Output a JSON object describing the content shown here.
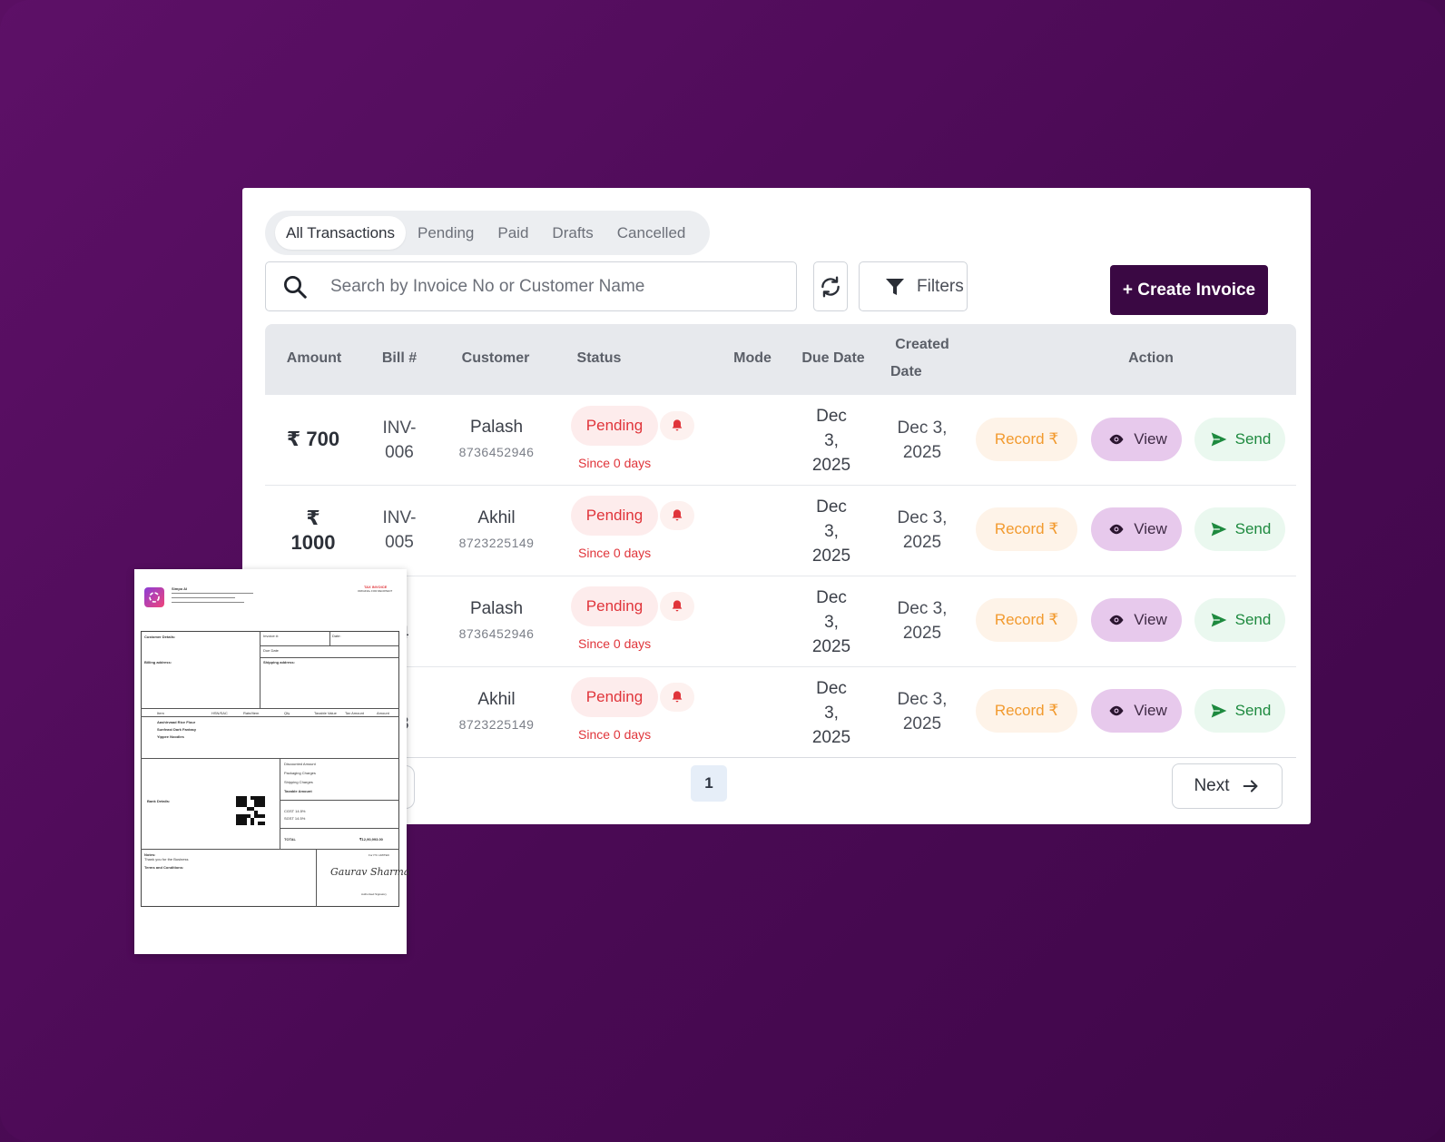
{
  "tabs": [
    {
      "label": "All Transactions",
      "active": true
    },
    {
      "label": "Pending",
      "active": false
    },
    {
      "label": "Paid",
      "active": false
    },
    {
      "label": "Drafts",
      "active": false
    },
    {
      "label": "Cancelled",
      "active": false
    }
  ],
  "search": {
    "placeholder": "Search by Invoice No or Customer Name",
    "icon": "search-icon"
  },
  "toolbar": {
    "refresh_icon": "refresh-icon",
    "filters_label": "Filters",
    "create_label": "+ Create Invoice"
  },
  "table": {
    "headers": {
      "amount": "Amount",
      "bill": "Bill #",
      "customer": "Customer",
      "status": "Status",
      "mode": "Mode",
      "due_date": "Due Date",
      "created_line1": "Created",
      "created_line2": "Date",
      "action": "Action"
    },
    "rows": [
      {
        "amount": "₹ 700",
        "bill_l1": "INV-",
        "bill_l2": "006",
        "customer": "Palash",
        "phone": "8736452946",
        "status": "Pending",
        "since": "Since 0 days",
        "mode": "",
        "due_l1": "Dec",
        "due_l2": "3,",
        "due_l3": "2025",
        "created_l1": "Dec 3,",
        "created_l2": "2025",
        "record": "Record ₹",
        "view": "View",
        "send": "Send"
      },
      {
        "amount_l1": "₹",
        "amount_l2": "1000",
        "bill_l1": "INV-",
        "bill_l2": "005",
        "customer": "Akhil",
        "phone": "8723225149",
        "status": "Pending",
        "since": "Since 0 days",
        "mode": "",
        "due_l1": "Dec",
        "due_l2": "3,",
        "due_l3": "2025",
        "created_l1": "Dec 3,",
        "created_l2": "2025",
        "record": "Record ₹",
        "view": "View",
        "send": "Send"
      },
      {
        "bill_l1": "/-",
        "bill_l2": "04",
        "customer": "Palash",
        "phone": "8736452946",
        "status": "Pending",
        "since": "Since 0 days",
        "mode": "",
        "due_l1": "Dec",
        "due_l2": "3,",
        "due_l3": "2025",
        "created_l1": "Dec 3,",
        "created_l2": "2025",
        "record": "Record ₹",
        "view": "View",
        "send": "Send"
      },
      {
        "bill_l1": "/-",
        "bill_l2": "03",
        "customer": "Akhil",
        "phone": "8723225149",
        "status": "Pending",
        "since": "Since 0 days",
        "mode": "",
        "due_l1": "Dec",
        "due_l2": "3,",
        "due_l3": "2025",
        "created_l1": "Dec 3,",
        "created_l2": "2025",
        "record": "Record ₹",
        "view": "View",
        "send": "Send"
      }
    ]
  },
  "pagination": {
    "current": "1",
    "next_label": "Next"
  },
  "colors": {
    "accent": "#3a0843",
    "pending": "#e0343a",
    "record": "#f29a2e",
    "view_bg": "#e7c9ec",
    "send": "#1e8a3f"
  },
  "invoice_doc": {
    "company": "Simpo AI",
    "tag": "TAX INVOICE",
    "tag_sub": "ORIGINAL FOR RECIPIENT",
    "customer_label": "Customer Details:",
    "billing_label": "Billing address:",
    "shipping_label": "Shipping address:",
    "invoice_no_label": "Invoice #:",
    "date_label": "Date:",
    "due_label": "Due Date",
    "col_item": "Item",
    "col_hsn": "HSN/SAC",
    "col_rate": "Rate/Item",
    "col_qty": "Qty",
    "col_taxable": "Taxable Value",
    "col_tax": "Tax Amount",
    "col_amount": "Amount",
    "item1": "Aashirvaad Rice Flour",
    "item2": "Sunfeast Dark Fantasy",
    "item3": "Yippee Noodles",
    "discount": "Discounted Amount",
    "packaging": "Packaging Charges",
    "shipping": "Shipping Charges",
    "taxable": "Taxable Amount",
    "cgst": "CGST 14.5%",
    "sgst": "SGST 14.5%",
    "total_label": "TOTAL",
    "total_value": "₹12,90,993.00",
    "bank_label": "Bank Details:",
    "notes_label": "Notes:",
    "notes_text": "Thank you for the Business",
    "terms_label": "Terms and Conditions:",
    "signature": "Gaurav Sharma",
    "for_label": "For ITC LIMITED",
    "auth_label": "Authorised Signatory"
  }
}
